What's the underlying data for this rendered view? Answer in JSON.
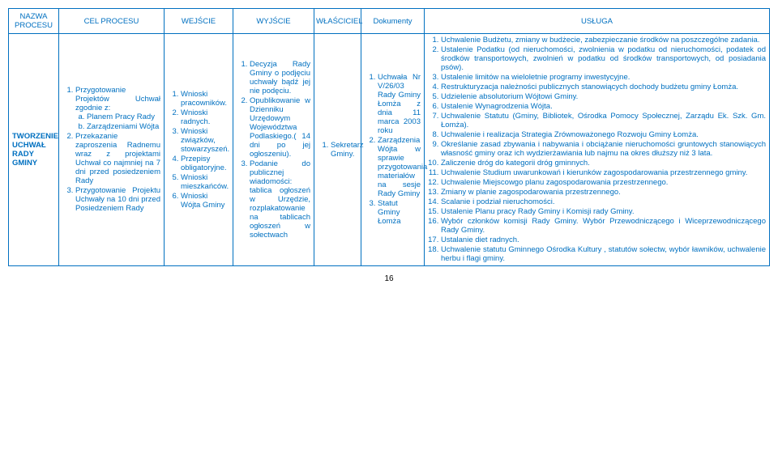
{
  "headers": {
    "nazwa": "NAZWA PROCESU",
    "cel": "CEL PROCESU",
    "wejscie": "WEJŚCIE",
    "wyjscie": "WYJŚCIE",
    "wlasciciel": "WŁAŚCICIEL",
    "dokumenty": "Dokumenty",
    "usluga": "USŁUGA"
  },
  "row": {
    "nazwa": "TWORZENIE UCHWAŁ RADY GMINY",
    "cel": {
      "i1": "Przygotowanie Projektów Uchwał zgodnie z:",
      "i1a": "Planem Pracy Rady",
      "i1b": "Zarządzeniami Wójta",
      "i2": "Przekazanie zaproszenia Radnemu wraz z projektami Uchwał co najmniej na 7 dni przed posiedzeniem Rady",
      "i3": "Przygotowanie Projektu Uchwały na 10 dni przed Posiedzeniem Rady"
    },
    "wejscie": {
      "i1": "Wnioski pracowników.",
      "i2": "Wnioski radnych.",
      "i3": "Wnioski związków, stowarzyszeń.",
      "i4": "Przepisy obligatoryjne.",
      "i5": "Wnioski mieszkańców.",
      "i6": "Wnioski Wójta Gminy"
    },
    "wyjscie": {
      "i1": "Decyzja Rady Gminy o podjęciu uchwały bądź jej nie podęciu.",
      "i2": "Opublikowanie w Dzienniku Urzędowym Województwa Podlaskiego.( 14 dni po jej ogłoszeniu).",
      "i3": "Podanie do publicznej wiadomości: tablica ogłoszeń w Urzędzie, rozplakatowanie na tablicach ogłoszeń w sołectwach"
    },
    "wlasciciel": {
      "i1": "Sekretarz Gminy."
    },
    "dokumenty": {
      "i1": "Uchwała Nr V/26/03 Rady Gminy Łomża z dnia 11 marca 2003 roku",
      "i2": "Zarządzenia Wójta w sprawie przygotowania materiałów na sesje Rady Gminy",
      "i3": "Statut Gminy Łomża"
    },
    "usluga": {
      "i1": "Uchwalenie Budżetu, zmiany w budżecie, zabezpieczanie środków na poszczególne zadania.",
      "i2": "Ustalenie Podatku (od nieruchomości, zwolnienia w podatku od nieruchomości, podatek od środków transportowych, zwolnień w podatku od środków transportowych, od posiadania psów).",
      "i3": "Ustalenie limitów na wieloletnie programy inwestycyjne.",
      "i4": "Restrukturyzacja należności publicznych stanowiących dochody budżetu gminy Łomża.",
      "i5": "Udzielenie absolutorium Wójtowi Gminy.",
      "i6": "Ustalenie Wynagrodzenia Wójta.",
      "i7": "Uchwalenie Statutu (Gminy, Bibliotek, Ośrodka Pomocy Społecznej, Zarządu Ek. Szk. Gm. Łomża).",
      "i8": "Uchwalenie i realizacja Strategia Zrównoważonego Rozwoju Gminy Łomża.",
      "i9": "Określanie zasad zbywania i nabywania i obciążanie nieruchomości gruntowych stanowiących własność gminy oraz ich wydzierżawiania lub najmu na okres dłuższy niż 3 lata.",
      "i10": "Zaliczenie dróg do kategorii dróg gminnych.",
      "i11": "Uchwalenie Studium uwarunkowań i kierunków zagospodarowania przestrzennego gminy.",
      "i12": "Uchwalenie Miejscowgo planu zagospodarowania przestrzennego.",
      "i13": "Zmiany w planie zagospodarowania przestrzennego.",
      "i14": "Scalanie i podział nieruchomości.",
      "i15": "Ustalenie Planu pracy Rady Gminy i Komisji rady Gminy.",
      "i16": "Wybór członków komisji Rady Gminy. Wybór Przewodniczącego i Wiceprzewodniczącego Rady Gminy.",
      "i17": "Ustalanie diet radnych.",
      "i18": "Uchwalenie statutu Gminnego Ośrodka Kultury , statutów sołectw, wybór ławników, uchwalenie herbu i flagi gminy."
    }
  },
  "page": "16"
}
